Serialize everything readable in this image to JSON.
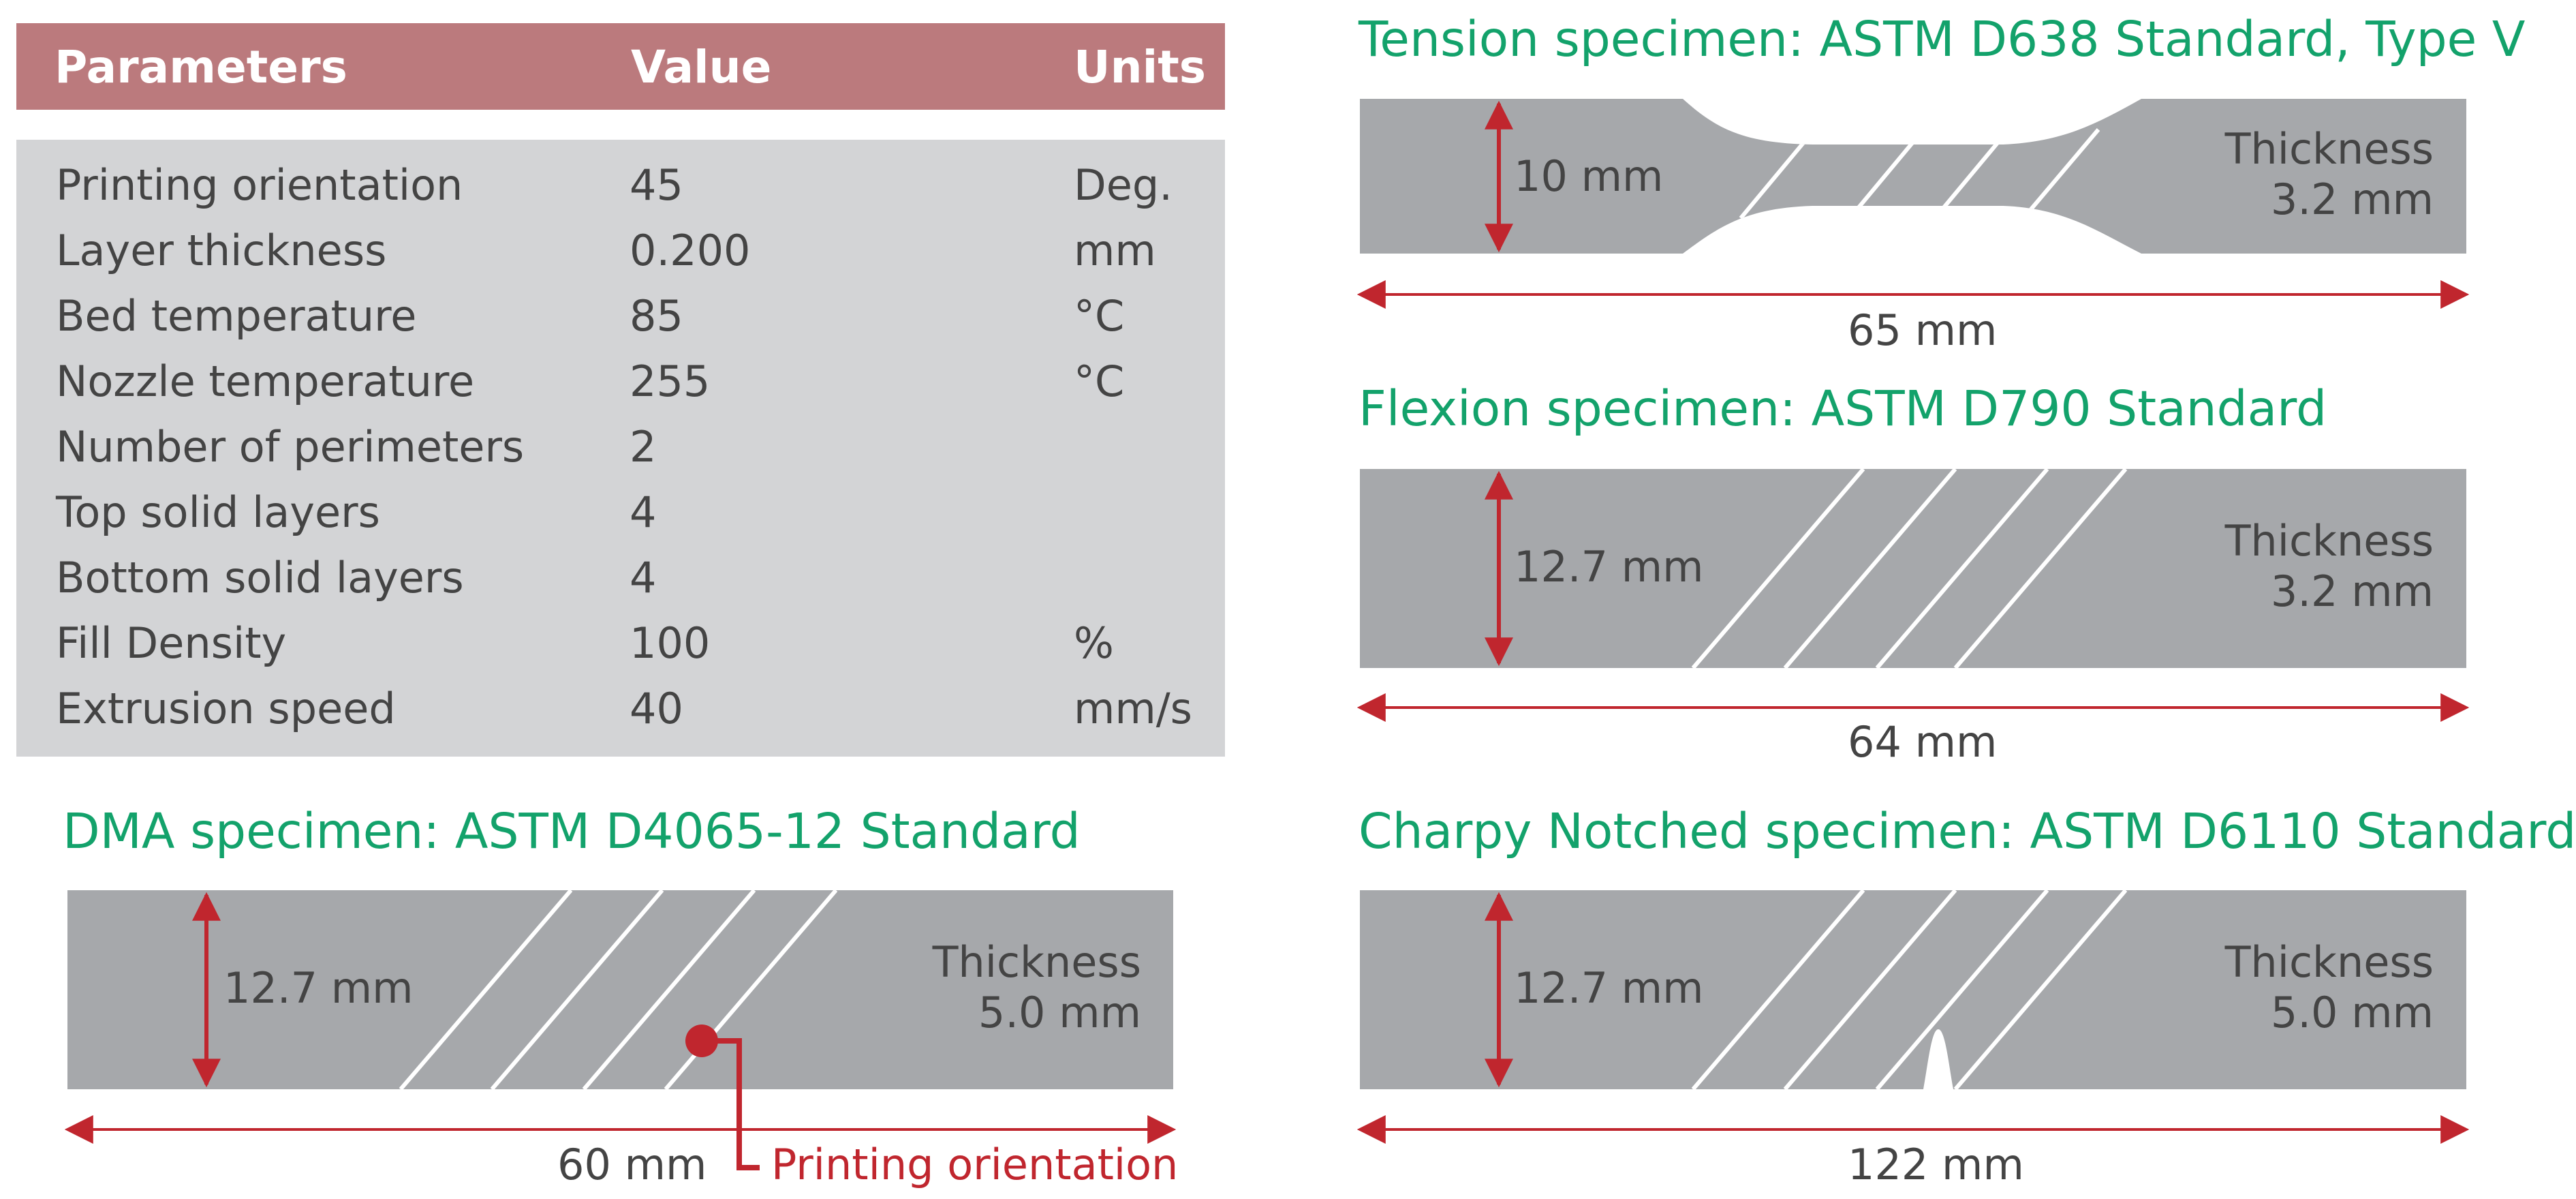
{
  "table": {
    "headers": {
      "parameters": "Parameters",
      "value": "Value",
      "units": "Units"
    },
    "rows": [
      {
        "parameter": "Printing orientation",
        "value": "45",
        "units": "Deg."
      },
      {
        "parameter": "Layer thickness",
        "value": "0.200",
        "units": "mm"
      },
      {
        "parameter": "Bed temperature",
        "value": "85",
        "units": "°C"
      },
      {
        "parameter": "Nozzle temperature",
        "value": "255",
        "units": "°C"
      },
      {
        "parameter": "Number of perimeters",
        "value": "2",
        "units": ""
      },
      {
        "parameter": "Top solid layers",
        "value": "4",
        "units": ""
      },
      {
        "parameter": "Bottom solid layers",
        "value": "4",
        "units": ""
      },
      {
        "parameter": "Fill Density",
        "value": "100",
        "units": "%"
      },
      {
        "parameter": "Extrusion speed",
        "value": "40",
        "units": "mm/s"
      }
    ]
  },
  "specimens": {
    "tension": {
      "title": "Tension specimen: ASTM D638 Standard, Type V",
      "width": "10 mm",
      "thickness_label": "Thickness",
      "thickness_value": "3.2 mm",
      "length": "65 mm"
    },
    "flexion": {
      "title": "Flexion specimen: ASTM D790 Standard",
      "width": "12.7 mm",
      "thickness_label": "Thickness",
      "thickness_value": "3.2 mm",
      "length": "64 mm"
    },
    "dma": {
      "title": "DMA specimen: ASTM D4065-12 Standard",
      "width": "12.7 mm",
      "thickness_label": "Thickness",
      "thickness_value": "5.0 mm",
      "length": "60 mm",
      "orientation_label": "Printing orientation"
    },
    "charpy": {
      "title": "Charpy Notched specimen: ASTM D6110 Standard",
      "width": "12.7 mm",
      "thickness_label": "Thickness",
      "thickness_value": "5.0 mm",
      "length": "122 mm"
    }
  },
  "colors": {
    "header_bg": "#bb7a7d",
    "table_bg": "#d3d4d6",
    "specimen_fill": "#a6a8ab",
    "title_green": "#13a26b",
    "dimension_red": "#c0262e"
  }
}
